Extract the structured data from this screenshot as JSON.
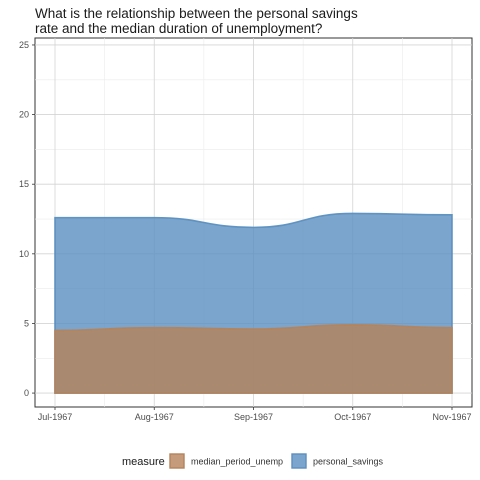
{
  "chart_data": {
    "type": "area",
    "title_lines": [
      "What is the relationship between the personal savings",
      "rate and the median duration of unemployment?"
    ],
    "x": [
      "Jul-1967",
      "Aug-1967",
      "Sep-1967",
      "Oct-1967",
      "Nov-1967"
    ],
    "ylim": [
      -1,
      25.5
    ],
    "y_ticks": [
      0,
      5,
      10,
      15,
      20,
      25
    ],
    "grid": true,
    "stacking": "overlapping",
    "series": [
      {
        "name": "personal_savings",
        "values": [
          12.6,
          12.6,
          11.9,
          12.9,
          12.8
        ],
        "color": "#5a8fc0"
      },
      {
        "name": "median_period_unemp",
        "values": [
          4.5,
          4.7,
          4.6,
          4.9,
          4.7
        ],
        "color": "#b5835a"
      }
    ],
    "legend": {
      "title": "measure",
      "position": "bottom",
      "entries": [
        "median_period_unemp",
        "personal_savings"
      ]
    }
  }
}
